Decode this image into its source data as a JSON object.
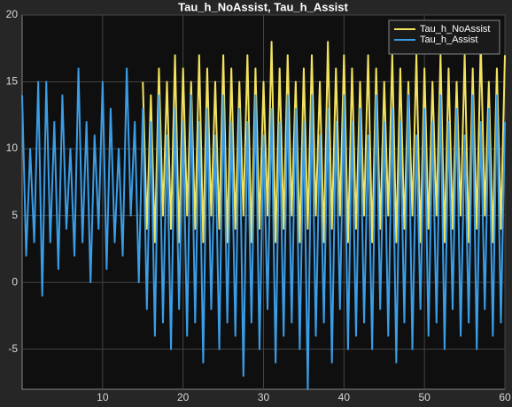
{
  "chart_data": {
    "type": "line",
    "title": "Tau_h_NoAssist, Tau_h_Assist",
    "x": [
      0,
      0.5,
      1,
      1.5,
      2,
      2.5,
      3,
      3.5,
      4,
      4.5,
      5,
      5.5,
      6,
      6.5,
      7,
      7.5,
      8,
      8.5,
      9,
      9.5,
      10,
      10.5,
      11,
      11.5,
      12,
      12.5,
      13,
      13.5,
      14,
      14.5,
      15,
      15.5,
      16,
      16.5,
      17,
      17.5,
      18,
      18.5,
      19,
      19.5,
      20,
      20.5,
      21,
      21.5,
      22,
      22.5,
      23,
      23.5,
      24,
      24.5,
      25,
      25.5,
      26,
      26.5,
      27,
      27.5,
      28,
      28.5,
      29,
      29.5,
      30,
      30.5,
      31,
      31.5,
      32,
      32.5,
      33,
      33.5,
      34,
      34.5,
      35,
      35.5,
      36,
      36.5,
      37,
      37.5,
      38,
      38.5,
      39,
      39.5,
      40,
      40.5,
      41,
      41.5,
      42,
      42.5,
      43,
      43.5,
      44,
      44.5,
      45,
      45.5,
      46,
      46.5,
      47,
      47.5,
      48,
      48.5,
      49,
      49.5,
      50,
      50.5,
      51,
      51.5,
      52,
      52.5,
      53,
      53.5,
      54,
      54.5,
      55,
      55.5,
      56,
      56.5,
      57,
      57.5,
      58,
      58.5,
      59,
      59.5,
      60
    ],
    "series": [
      {
        "name": "Tau_h_NoAssist",
        "color": "#f2e35f",
        "values": [
          null,
          null,
          null,
          null,
          null,
          null,
          null,
          null,
          null,
          null,
          null,
          null,
          null,
          null,
          null,
          null,
          null,
          null,
          null,
          null,
          null,
          null,
          null,
          null,
          null,
          null,
          null,
          null,
          null,
          null,
          15,
          4,
          14,
          3,
          16,
          5,
          15,
          4,
          17,
          3,
          16,
          5,
          15,
          4,
          17,
          3,
          16,
          5,
          15,
          4,
          17,
          3,
          16,
          4,
          15,
          5,
          17,
          3,
          16,
          4,
          15,
          5,
          18,
          3,
          16,
          4,
          17,
          5,
          15,
          3,
          16,
          4,
          17,
          5,
          15,
          3,
          18,
          4,
          16,
          5,
          17,
          3,
          16,
          4,
          15,
          5,
          17,
          3,
          16,
          4,
          15,
          5,
          17,
          3,
          16,
          4,
          15,
          5,
          17,
          3,
          16,
          4,
          15,
          5,
          17,
          3,
          16,
          4,
          15,
          5,
          17,
          3,
          16,
          4,
          18,
          5,
          15,
          3,
          16,
          4,
          17
        ]
      },
      {
        "name": "Tau_h_Assist",
        "color": "#3b9de6",
        "values": [
          14,
          2,
          10,
          3,
          15,
          -1,
          15,
          3,
          12,
          1,
          14,
          4,
          10,
          2,
          16,
          3,
          12,
          0,
          11,
          4,
          15,
          1,
          13,
          3,
          10,
          2,
          16,
          5,
          12,
          0,
          13,
          -2,
          12,
          -4,
          14,
          -3,
          11,
          -5,
          13,
          -2,
          12,
          -4,
          14,
          -3,
          12,
          -6,
          13,
          -2,
          11,
          -5,
          14,
          -3,
          12,
          -4,
          13,
          -7,
          12,
          -3,
          14,
          -5,
          11,
          -2,
          13,
          -6,
          12,
          -4,
          14,
          -3,
          13,
          -5,
          12,
          -8,
          14,
          -4,
          11,
          -3,
          13,
          -6,
          12,
          -2,
          14,
          -5,
          12,
          -4,
          13,
          -3,
          11,
          -5,
          14,
          -2,
          12,
          -4,
          13,
          -6,
          12,
          -3,
          14,
          -5,
          11,
          -2,
          13,
          -4,
          12,
          -3,
          14,
          -5,
          12,
          -2,
          13,
          -4,
          11,
          -3,
          14,
          -5,
          12,
          -2,
          13,
          -4,
          14,
          -3,
          12
        ]
      }
    ],
    "xlim": [
      0,
      60
    ],
    "ylim": [
      -8,
      20
    ],
    "xticks": [
      10,
      20,
      30,
      40,
      50,
      60
    ],
    "yticks": [
      -5,
      0,
      5,
      10,
      15,
      20
    ],
    "grid": true,
    "legend": "top-right"
  }
}
